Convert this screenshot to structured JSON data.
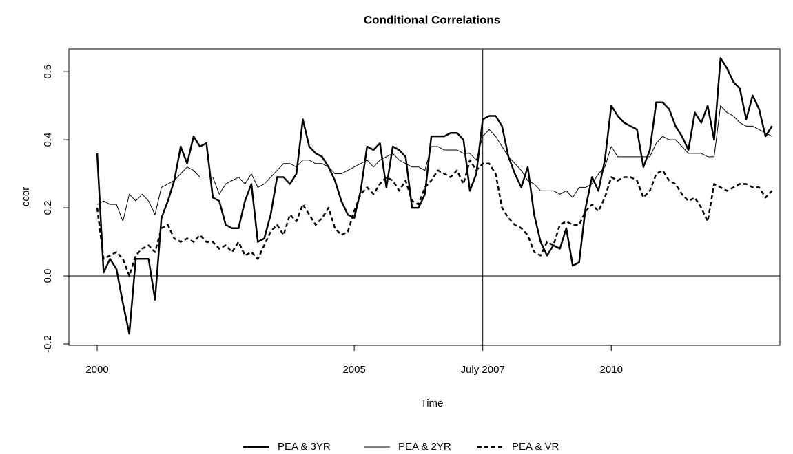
{
  "chart_data": {
    "type": "line",
    "title": "Conditional Correlations",
    "xlabel": "Time",
    "ylabel": "ccor",
    "x": [
      2000,
      2000.125,
      2000.25,
      2000.375,
      2000.5,
      2000.625,
      2000.75,
      2000.875,
      2001,
      2001.125,
      2001.25,
      2001.375,
      2001.5,
      2001.625,
      2001.75,
      2001.875,
      2002,
      2002.125,
      2002.25,
      2002.375,
      2002.5,
      2002.625,
      2002.75,
      2002.875,
      2003,
      2003.125,
      2003.25,
      2003.375,
      2003.5,
      2003.625,
      2003.75,
      2003.875,
      2004,
      2004.125,
      2004.25,
      2004.375,
      2004.5,
      2004.625,
      2004.75,
      2004.875,
      2005,
      2005.125,
      2005.25,
      2005.375,
      2005.5,
      2005.625,
      2005.75,
      2005.875,
      2006,
      2006.125,
      2006.25,
      2006.375,
      2006.5,
      2006.625,
      2006.75,
      2006.875,
      2007,
      2007.125,
      2007.25,
      2007.375,
      2007.5,
      2007.625,
      2007.75,
      2007.875,
      2008,
      2008.125,
      2008.25,
      2008.375,
      2008.5,
      2008.625,
      2008.75,
      2008.875,
      2009,
      2009.125,
      2009.25,
      2009.375,
      2009.5,
      2009.625,
      2009.75,
      2009.875,
      2010,
      2010.125,
      2010.25,
      2010.375,
      2010.5,
      2010.625,
      2010.75,
      2010.875,
      2011,
      2011.125,
      2011.25,
      2011.375,
      2011.5,
      2011.625,
      2011.75,
      2011.875,
      2012,
      2012.125,
      2012.25,
      2012.375,
      2012.5,
      2012.625,
      2012.75,
      2012.875,
      2013,
      2013.125
    ],
    "series": [
      {
        "name": "PEA & 3YR",
        "color": "#000000",
        "linewidth": 2.5,
        "linestyle": "solid",
        "values": [
          0.36,
          0.01,
          0.05,
          0.02,
          -0.08,
          -0.17,
          0.05,
          0.05,
          0.05,
          -0.07,
          0.17,
          0.22,
          0.28,
          0.38,
          0.33,
          0.41,
          0.38,
          0.39,
          0.23,
          0.22,
          0.15,
          0.14,
          0.14,
          0.22,
          0.27,
          0.1,
          0.11,
          0.18,
          0.29,
          0.29,
          0.27,
          0.3,
          0.46,
          0.38,
          0.36,
          0.35,
          0.32,
          0.28,
          0.22,
          0.18,
          0.17,
          0.25,
          0.38,
          0.37,
          0.39,
          0.26,
          0.38,
          0.37,
          0.35,
          0.2,
          0.2,
          0.24,
          0.41,
          0.41,
          0.41,
          0.42,
          0.42,
          0.4,
          0.25,
          0.3,
          0.46,
          0.47,
          0.47,
          0.44,
          0.35,
          0.3,
          0.26,
          0.32,
          0.18,
          0.1,
          0.06,
          0.09,
          0.08,
          0.14,
          0.03,
          0.04,
          0.2,
          0.29,
          0.25,
          0.34,
          0.5,
          0.47,
          0.45,
          0.44,
          0.43,
          0.32,
          0.37,
          0.51,
          0.51,
          0.49,
          0.44,
          0.41,
          0.37,
          0.48,
          0.45,
          0.5,
          0.4,
          0.64,
          0.61,
          0.57,
          0.55,
          0.46,
          0.53,
          0.49,
          0.41,
          0.44
        ]
      },
      {
        "name": "PEA & 2YR",
        "color": "#000000",
        "linewidth": 1,
        "linestyle": "solid",
        "values": [
          0.21,
          0.22,
          0.21,
          0.21,
          0.16,
          0.24,
          0.22,
          0.24,
          0.22,
          0.18,
          0.26,
          0.27,
          0.28,
          0.3,
          0.32,
          0.31,
          0.29,
          0.29,
          0.29,
          0.24,
          0.27,
          0.28,
          0.29,
          0.27,
          0.3,
          0.26,
          0.27,
          0.29,
          0.31,
          0.33,
          0.33,
          0.32,
          0.34,
          0.34,
          0.33,
          0.33,
          0.32,
          0.3,
          0.3,
          0.31,
          0.32,
          0.33,
          0.34,
          0.32,
          0.34,
          0.35,
          0.36,
          0.34,
          0.33,
          0.32,
          0.32,
          0.31,
          0.38,
          0.38,
          0.37,
          0.37,
          0.37,
          0.36,
          0.36,
          0.34,
          0.41,
          0.43,
          0.41,
          0.38,
          0.35,
          0.33,
          0.31,
          0.28,
          0.27,
          0.25,
          0.25,
          0.25,
          0.24,
          0.25,
          0.23,
          0.26,
          0.26,
          0.27,
          0.3,
          0.32,
          0.38,
          0.35,
          0.35,
          0.35,
          0.35,
          0.35,
          0.35,
          0.39,
          0.41,
          0.4,
          0.4,
          0.38,
          0.36,
          0.36,
          0.36,
          0.35,
          0.35,
          0.5,
          0.48,
          0.47,
          0.45,
          0.44,
          0.44,
          0.43,
          0.42,
          0.41
        ]
      },
      {
        "name": "PEA & VR",
        "color": "#000000",
        "linewidth": 2.5,
        "linestyle": "dashed",
        "values": [
          0.2,
          0.05,
          0.06,
          0.07,
          0.05,
          0.0,
          0.06,
          0.08,
          0.09,
          0.07,
          0.14,
          0.15,
          0.11,
          0.1,
          0.11,
          0.1,
          0.12,
          0.1,
          0.1,
          0.08,
          0.09,
          0.07,
          0.1,
          0.06,
          0.07,
          0.05,
          0.09,
          0.13,
          0.15,
          0.12,
          0.18,
          0.16,
          0.21,
          0.18,
          0.15,
          0.17,
          0.2,
          0.14,
          0.12,
          0.13,
          0.19,
          0.24,
          0.26,
          0.24,
          0.27,
          0.29,
          0.28,
          0.25,
          0.28,
          0.22,
          0.21,
          0.26,
          0.28,
          0.31,
          0.3,
          0.29,
          0.31,
          0.27,
          0.34,
          0.31,
          0.33,
          0.33,
          0.3,
          0.2,
          0.17,
          0.15,
          0.14,
          0.12,
          0.07,
          0.06,
          0.1,
          0.09,
          0.15,
          0.16,
          0.15,
          0.15,
          0.19,
          0.21,
          0.19,
          0.23,
          0.29,
          0.28,
          0.29,
          0.29,
          0.28,
          0.23,
          0.25,
          0.3,
          0.31,
          0.28,
          0.27,
          0.24,
          0.22,
          0.23,
          0.2,
          0.16,
          0.27,
          0.26,
          0.25,
          0.26,
          0.27,
          0.27,
          0.26,
          0.26,
          0.23,
          0.25
        ]
      }
    ],
    "xlim": [
      1999.45,
      2013.28
    ],
    "ylim": [
      -0.204,
      0.667
    ],
    "xticks": [
      2000,
      2005,
      {
        "value": 2007.5,
        "label": "July 2007"
      },
      2010
    ],
    "yticks": [
      -0.2,
      {
        "value": 0,
        "label": "0.0"
      },
      0.2,
      0.4,
      0.6
    ],
    "reference_lines": {
      "x": [
        2007.5
      ],
      "y": [
        0
      ]
    },
    "legend": "bottom",
    "grid": false
  }
}
